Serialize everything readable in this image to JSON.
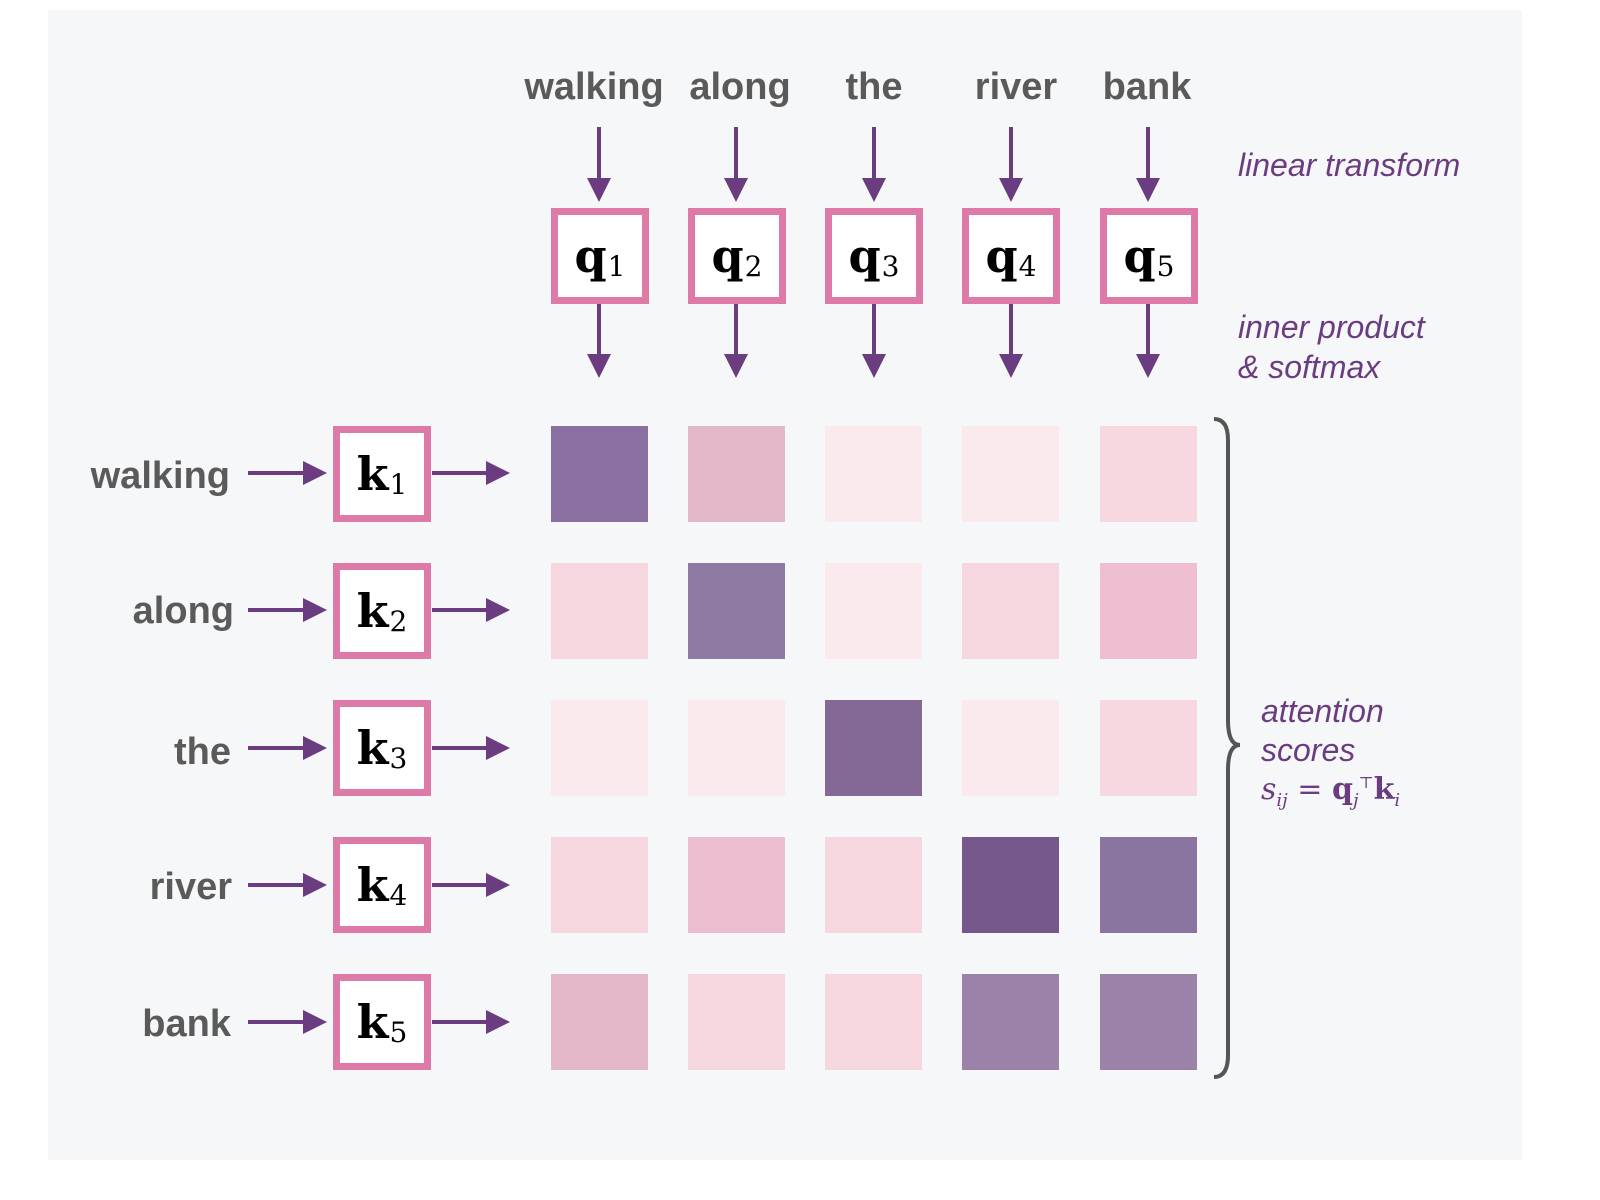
{
  "query_words": [
    "walking",
    "along",
    "the",
    "river",
    "bank"
  ],
  "key_words": [
    "walking",
    "along",
    "the",
    "river",
    "bank"
  ],
  "query_vectors": [
    {
      "symbol": "q",
      "index": "1"
    },
    {
      "symbol": "q",
      "index": "2"
    },
    {
      "symbol": "q",
      "index": "3"
    },
    {
      "symbol": "q",
      "index": "4"
    },
    {
      "symbol": "q",
      "index": "5"
    }
  ],
  "key_vectors": [
    {
      "symbol": "k",
      "index": "1"
    },
    {
      "symbol": "k",
      "index": "2"
    },
    {
      "symbol": "k",
      "index": "3"
    },
    {
      "symbol": "k",
      "index": "4"
    },
    {
      "symbol": "k",
      "index": "5"
    }
  ],
  "annotations": {
    "linear_transform": "linear transform",
    "inner_product_line1": "inner product",
    "inner_product_line2": "& softmax",
    "attention_line1": "attention",
    "attention_line2": "scores",
    "formula": {
      "lhs": "s",
      "lhs_sub": "ij",
      "equals": " = ",
      "q": "q",
      "q_sub": "j",
      "transpose": "⊤",
      "k": "k",
      "k_sub": "i"
    }
  },
  "colors": {
    "box_border": "#de7aa7",
    "arrow": "#6b3d80",
    "annotation": "#6b3d80",
    "word": "#5a5a5a",
    "brace": "#555555"
  },
  "attention_matrix": {
    "row_labels": [
      "walking",
      "along",
      "the",
      "river",
      "bank"
    ],
    "col_labels": [
      "walking",
      "along",
      "the",
      "river",
      "bank"
    ],
    "colors": [
      [
        "#8a70a0",
        "#e3b8c8",
        "#faeaee",
        "#faeaee",
        "#f8d8e0"
      ],
      [
        "#f7d7df",
        "#8f7aa2",
        "#faeaee",
        "#f7d7df",
        "#efbed1"
      ],
      [
        "#faeaee",
        "#faeaee",
        "#846896",
        "#faeaee",
        "#f8d8e0"
      ],
      [
        "#f7d7df",
        "#ecbccf",
        "#f7d7df",
        "#77588c",
        "#8a74a0"
      ],
      [
        "#e3b8c8",
        "#f7d7df",
        "#f7d7df",
        "#9a82a8",
        "#9a82a8"
      ]
    ]
  }
}
